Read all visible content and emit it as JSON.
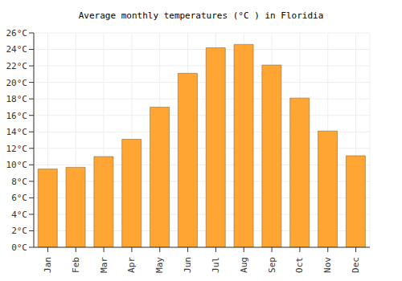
{
  "chart_data": {
    "type": "bar",
    "title": "Average monthly temperatures (°C ) in Floridia",
    "categories": [
      "Jan",
      "Feb",
      "Mar",
      "Apr",
      "May",
      "Jun",
      "Jul",
      "Aug",
      "Sep",
      "Oct",
      "Nov",
      "Dec"
    ],
    "values": [
      9.5,
      9.7,
      11,
      13.1,
      17,
      21.1,
      24.2,
      24.6,
      22.1,
      18.1,
      14.1,
      11.1
    ],
    "color": "#ffa533",
    "ylim": [
      0,
      26
    ],
    "yticks": [
      {
        "value": 0,
        "label": "0°C"
      },
      {
        "value": 2,
        "label": "2°C"
      },
      {
        "value": 4,
        "label": "4°C"
      },
      {
        "value": 6,
        "label": "6°C"
      },
      {
        "value": 8,
        "label": "8°C"
      },
      {
        "value": 10,
        "label": "10°C"
      },
      {
        "value": 12,
        "label": "12°C"
      },
      {
        "value": 14,
        "label": "14°C"
      },
      {
        "value": 16,
        "label": "16°C"
      },
      {
        "value": 18,
        "label": "18°C"
      },
      {
        "value": 20,
        "label": "20°C"
      },
      {
        "value": 22,
        "label": "22°C"
      },
      {
        "value": 24,
        "label": "24°C"
      },
      {
        "value": 26,
        "label": "26°C"
      }
    ],
    "grid": true
  }
}
